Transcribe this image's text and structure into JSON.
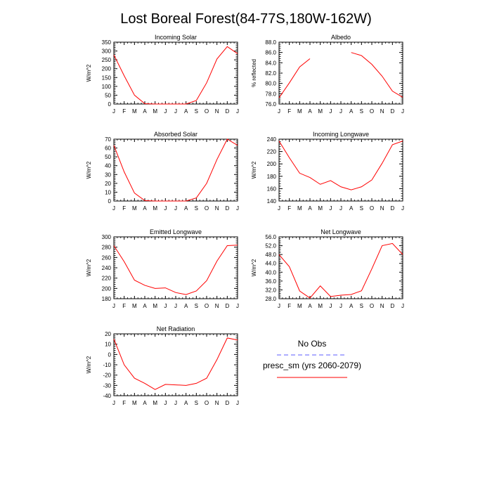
{
  "title": "Lost Boreal Forest(84-77S,180W-162W)",
  "legend": {
    "entries": [
      {
        "label": "No Obs",
        "color": "#5b5bff",
        "dashed": true
      },
      {
        "label": "presc_sm (yrs 2060-2079)",
        "color": "#ff0000",
        "dashed": false
      }
    ]
  },
  "chart_data": [
    {
      "type": "line",
      "title": "Incoming Solar",
      "ylabel": "W/m^2",
      "categories": [
        "J",
        "F",
        "M",
        "A",
        "M",
        "J",
        "J",
        "A",
        "S",
        "O",
        "N",
        "D",
        "J"
      ],
      "ylim": [
        0,
        350
      ],
      "yticks": [
        0,
        50,
        100,
        150,
        200,
        250,
        300,
        350
      ],
      "ytick_labels": [
        "0",
        "50",
        "100",
        "150",
        "200",
        "250",
        "300",
        "350"
      ],
      "series": [
        {
          "name": "presc_sm (yrs 2060-2079)",
          "color": "#ff0000",
          "values": [
            278,
            160,
            50,
            2,
            0,
            0,
            0,
            0,
            20,
            120,
            255,
            325,
            285
          ]
        }
      ]
    },
    {
      "type": "line",
      "title": "Albedo",
      "ylabel": "% reflected",
      "categories": [
        "J",
        "F",
        "M",
        "A",
        "M",
        "J",
        "J",
        "A",
        "S",
        "O",
        "N",
        "D",
        "J"
      ],
      "ylim": [
        76,
        88
      ],
      "yticks": [
        76,
        78,
        80,
        82,
        84,
        86,
        88
      ],
      "ytick_labels": [
        "76.0",
        "78.0",
        "80.0",
        "82.0",
        "84.0",
        "86.0",
        "88.0"
      ],
      "series": [
        {
          "name": "presc_sm (yrs 2060-2079)",
          "color": "#ff0000",
          "values": [
            77.2,
            80.1,
            83.2,
            84.8,
            null,
            null,
            null,
            86.0,
            85.4,
            83.7,
            81.4,
            78.5,
            77.3
          ]
        }
      ]
    },
    {
      "type": "line",
      "title": "Absorbed Solar",
      "ylabel": "W/m^2",
      "categories": [
        "J",
        "F",
        "M",
        "A",
        "M",
        "J",
        "J",
        "A",
        "S",
        "O",
        "N",
        "D",
        "J"
      ],
      "ylim": [
        0,
        70
      ],
      "yticks": [
        0,
        10,
        20,
        30,
        40,
        50,
        60,
        70
      ],
      "ytick_labels": [
        "0",
        "10",
        "20",
        "30",
        "40",
        "50",
        "60",
        "70"
      ],
      "series": [
        {
          "name": "presc_sm (yrs 2060-2079)",
          "color": "#ff0000",
          "values": [
            63,
            33,
            9,
            0.5,
            0,
            0,
            0,
            0,
            3.5,
            20,
            47,
            70,
            63
          ]
        }
      ]
    },
    {
      "type": "line",
      "title": "Incoming Longwave",
      "ylabel": "W/m^2",
      "categories": [
        "J",
        "F",
        "M",
        "A",
        "M",
        "J",
        "J",
        "A",
        "S",
        "O",
        "N",
        "D",
        "J"
      ],
      "ylim": [
        140,
        240
      ],
      "yticks": [
        140,
        160,
        180,
        200,
        220,
        240
      ],
      "ytick_labels": [
        "140",
        "160",
        "180",
        "200",
        "220",
        "240"
      ],
      "series": [
        {
          "name": "presc_sm (yrs 2060-2079)",
          "color": "#ff0000",
          "values": [
            237,
            210,
            185,
            178,
            167,
            173,
            163,
            158,
            163,
            174,
            201,
            231,
            237
          ]
        }
      ]
    },
    {
      "type": "line",
      "title": "Emitted Longwave",
      "ylabel": "W/m^2",
      "categories": [
        "J",
        "F",
        "M",
        "A",
        "M",
        "J",
        "J",
        "A",
        "S",
        "O",
        "N",
        "D",
        "J"
      ],
      "ylim": [
        180,
        300
      ],
      "yticks": [
        180,
        200,
        220,
        240,
        260,
        280,
        300
      ],
      "ytick_labels": [
        "180",
        "200",
        "220",
        "240",
        "260",
        "280",
        "300"
      ],
      "series": [
        {
          "name": "presc_sm (yrs 2060-2079)",
          "color": "#ff0000",
          "values": [
            283,
            252,
            216,
            206,
            200,
            201,
            192,
            188,
            195,
            215,
            253,
            283,
            284
          ]
        }
      ]
    },
    {
      "type": "line",
      "title": "Net Longwave",
      "ylabel": "W/m^2",
      "categories": [
        "J",
        "F",
        "M",
        "A",
        "M",
        "J",
        "J",
        "A",
        "S",
        "O",
        "N",
        "D",
        "J"
      ],
      "ylim": [
        28,
        56
      ],
      "yticks": [
        28,
        32,
        36,
        40,
        44,
        48,
        52,
        56
      ],
      "ytick_labels": [
        "28.0",
        "32.0",
        "36.0",
        "40.0",
        "44.0",
        "48.0",
        "52.0",
        "56.0"
      ],
      "series": [
        {
          "name": "presc_sm (yrs 2060-2079)",
          "color": "#ff0000",
          "values": [
            48,
            42.5,
            31.5,
            28.3,
            33.8,
            29,
            29.6,
            29.9,
            31.6,
            41.5,
            52,
            53,
            48
          ]
        }
      ]
    },
    {
      "type": "line",
      "title": "Net Radiation",
      "ylabel": "W/m^2",
      "categories": [
        "J",
        "F",
        "M",
        "A",
        "M",
        "J",
        "J",
        "A",
        "S",
        "O",
        "N",
        "D",
        "J"
      ],
      "ylim": [
        -40,
        20
      ],
      "yticks": [
        -40,
        -30,
        -20,
        -10,
        0,
        10,
        20
      ],
      "ytick_labels": [
        "-40",
        "-30",
        "-20",
        "-10",
        "0",
        "10",
        "20"
      ],
      "series": [
        {
          "name": "presc_sm (yrs 2060-2079)",
          "color": "#ff0000",
          "values": [
            15,
            -10,
            -23,
            -28,
            -34,
            -29,
            -29.5,
            -30,
            -28,
            -23,
            -5,
            16,
            14
          ]
        }
      ]
    }
  ]
}
